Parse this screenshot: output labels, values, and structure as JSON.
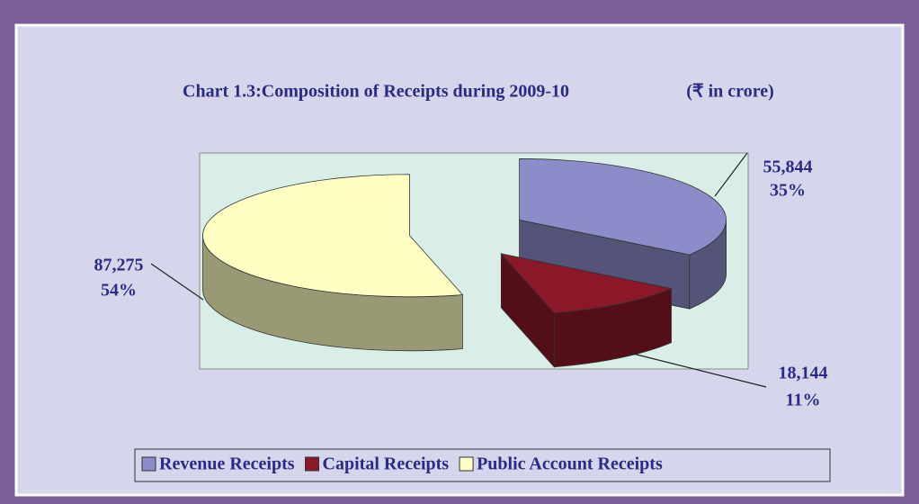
{
  "chart_data": {
    "type": "pie",
    "title": "Chart 1.3:Composition of Receipts during 2009-10",
    "unit": "(₹ in crore)",
    "categories": [
      "Revenue Receipts",
      "Capital Receipts",
      "Public Account Receipts"
    ],
    "values": [
      55844,
      18144,
      87275
    ],
    "value_labels": [
      "55,844",
      "18,144",
      "87,275"
    ],
    "percentages": [
      35,
      11,
      54
    ],
    "percentage_labels": [
      "35%",
      "11%",
      "54%"
    ],
    "colors": [
      "#8c8cc8",
      "#8a1828",
      "#ffffc4"
    ],
    "legend": "bottom"
  }
}
